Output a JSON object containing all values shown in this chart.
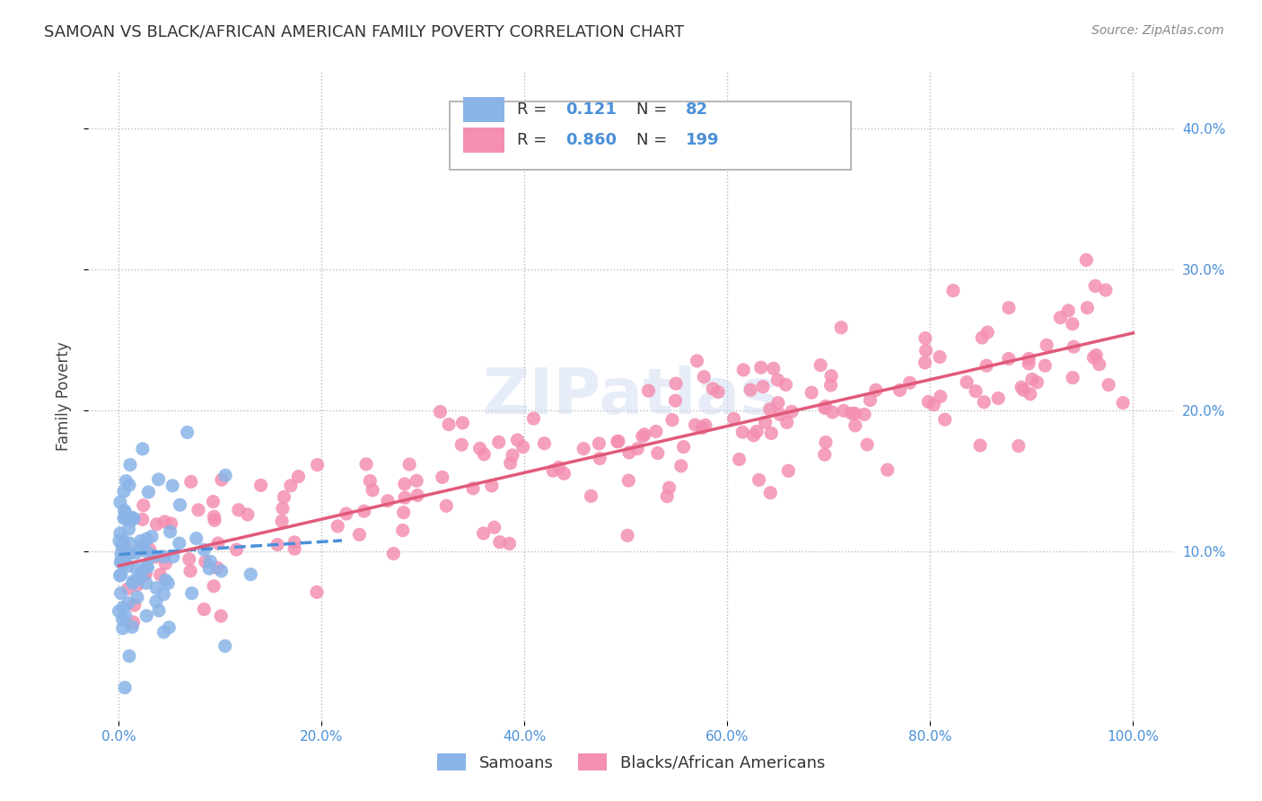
{
  "title": "SAMOAN VS BLACK/AFRICAN AMERICAN FAMILY POVERTY CORRELATION CHART",
  "source": "Source: ZipAtlas.com",
  "ylabel": "Family Poverty",
  "legend_label1": "Samoans",
  "legend_label2": "Blacks/African Americans",
  "R1": "0.121",
  "N1": "82",
  "R2": "0.860",
  "N2": "199",
  "color_blue": "#8ab4e8",
  "color_pink": "#f48fb1",
  "color_blue_line": "#4a90d9",
  "color_pink_line": "#e05a7a",
  "color_blue_label": "#4a90d9",
  "watermark": "ZIPatlas",
  "blue_slope": 0.045,
  "blue_intercept": 9.8,
  "pink_slope": 0.165,
  "pink_intercept": 9.0,
  "xlim": [
    -3,
    104
  ],
  "ylim": [
    -2,
    44
  ],
  "xticks": [
    0,
    20,
    40,
    60,
    80,
    100
  ],
  "yticks": [
    10,
    20,
    30,
    40
  ],
  "xtick_labels": [
    "0.0%",
    "20.0%",
    "40.0%",
    "60.0%",
    "80.0%",
    "100.0%"
  ],
  "ytick_labels": [
    "10.0%",
    "20.0%",
    "30.0%",
    "40.0%"
  ]
}
